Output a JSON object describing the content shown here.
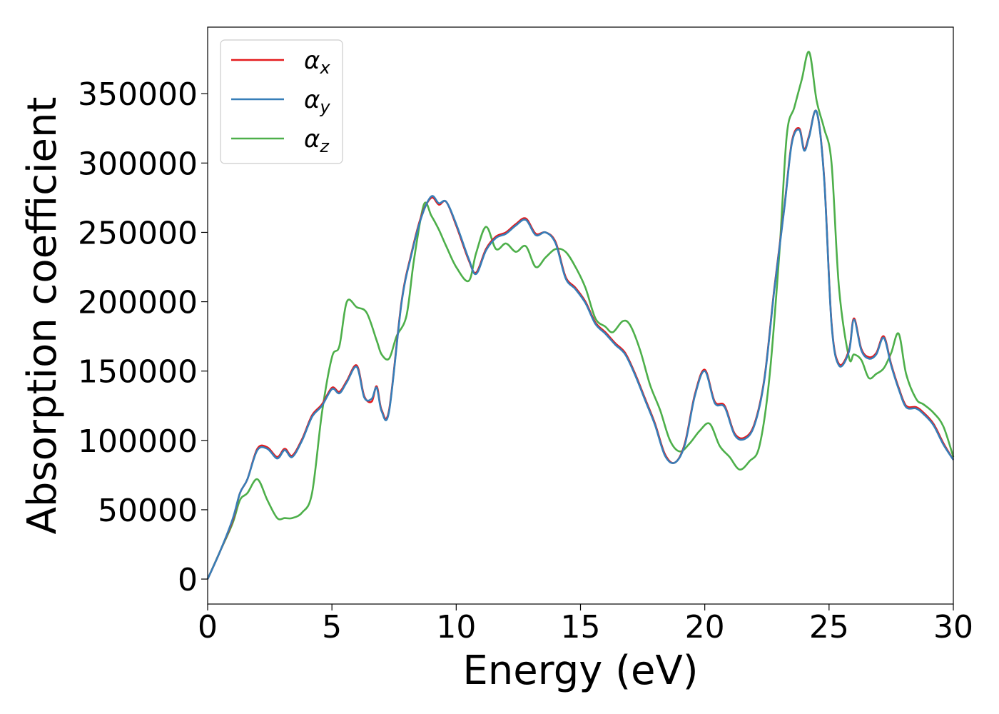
{
  "chart_data": {
    "type": "line",
    "title": "",
    "xlabel": "Energy (eV)",
    "ylabel": "Absorption coefficient",
    "xlim": [
      0,
      30
    ],
    "ylim": [
      -18000,
      398000
    ],
    "xticks": [
      0,
      5,
      10,
      15,
      20,
      25,
      30
    ],
    "yticks": [
      0,
      50000,
      100000,
      150000,
      200000,
      250000,
      300000,
      350000
    ],
    "xtick_labels": [
      "0",
      "5",
      "10",
      "15",
      "20",
      "25",
      "30"
    ],
    "ytick_labels": [
      "0",
      "50000",
      "100000",
      "150000",
      "200000",
      "250000",
      "300000",
      "350000"
    ],
    "grid": false,
    "legend_position": "top-left",
    "series": [
      {
        "name": "α",
        "subscript": "x",
        "color": "#e41a1c",
        "x": [
          0,
          0.5,
          1,
          1.3,
          1.6,
          2,
          2.4,
          2.8,
          3.1,
          3.4,
          3.8,
          4.2,
          4.6,
          5,
          5.3,
          5.6,
          6,
          6.3,
          6.6,
          6.8,
          7,
          7.3,
          7.8,
          8.2,
          8.6,
          9,
          9.3,
          9.6,
          10,
          10.5,
          10.8,
          11.2,
          11.6,
          12,
          12.4,
          12.8,
          13.2,
          13.6,
          14,
          14.4,
          14.8,
          15.2,
          15.6,
          16,
          16.4,
          16.8,
          17.2,
          17.6,
          18,
          18.4,
          18.8,
          19.2,
          19.6,
          20,
          20.4,
          20.8,
          21.2,
          21.6,
          22,
          22.4,
          22.8,
          23.2,
          23.5,
          23.8,
          24,
          24.2,
          24.5,
          24.8,
          25.1,
          25.4,
          25.8,
          26,
          26.3,
          26.6,
          26.9,
          27.2,
          27.5,
          27.8,
          28.1,
          28.5,
          28.8,
          29.2,
          29.6,
          30
        ],
        "y": [
          0,
          20000,
          42000,
          62000,
          72000,
          94000,
          95000,
          88000,
          94000,
          89000,
          101000,
          118000,
          126000,
          138000,
          135000,
          143000,
          154000,
          132000,
          128000,
          139000,
          122000,
          122000,
          200000,
          235000,
          262000,
          275000,
          270000,
          272000,
          255000,
          230000,
          221000,
          238000,
          247000,
          250000,
          256000,
          260000,
          249000,
          250000,
          243000,
          218000,
          210000,
          200000,
          185000,
          178000,
          170000,
          163000,
          148000,
          130000,
          112000,
          90000,
          84000,
          98000,
          133000,
          151000,
          128000,
          125000,
          105000,
          102000,
          112000,
          145000,
          210000,
          268000,
          315000,
          325000,
          310000,
          320000,
          337000,
          290000,
          185000,
          155000,
          165000,
          188000,
          166000,
          160000,
          163000,
          175000,
          155000,
          138000,
          125000,
          124000,
          120000,
          112000,
          98000,
          86000
        ]
      },
      {
        "name": "α",
        "subscript": "y",
        "color": "#377eb8",
        "x": [
          0,
          0.5,
          1,
          1.3,
          1.6,
          2,
          2.4,
          2.8,
          3.1,
          3.4,
          3.8,
          4.2,
          4.6,
          5,
          5.3,
          5.6,
          6,
          6.3,
          6.6,
          6.8,
          7,
          7.3,
          7.8,
          8.2,
          8.6,
          9,
          9.3,
          9.6,
          10,
          10.5,
          10.8,
          11.2,
          11.6,
          12,
          12.4,
          12.8,
          13.2,
          13.6,
          14,
          14.4,
          14.8,
          15.2,
          15.6,
          16,
          16.4,
          16.8,
          17.2,
          17.6,
          18,
          18.4,
          18.8,
          19.2,
          19.6,
          20,
          20.4,
          20.8,
          21.2,
          21.6,
          22,
          22.4,
          22.8,
          23.2,
          23.5,
          23.8,
          24,
          24.2,
          24.5,
          24.8,
          25.1,
          25.4,
          25.8,
          26,
          26.3,
          26.6,
          26.9,
          27.2,
          27.5,
          27.8,
          28.1,
          28.5,
          28.8,
          29.2,
          29.6,
          30
        ],
        "y": [
          0,
          20000,
          43000,
          62000,
          72000,
          93000,
          94000,
          87000,
          93000,
          88000,
          100000,
          117000,
          125000,
          137000,
          134000,
          142000,
          153000,
          131000,
          130000,
          138000,
          121000,
          121000,
          199000,
          234000,
          261000,
          276000,
          271000,
          272000,
          256000,
          231000,
          220000,
          237000,
          246000,
          249000,
          255000,
          259000,
          248000,
          250000,
          242000,
          217000,
          209000,
          199000,
          184000,
          177000,
          169000,
          162000,
          147000,
          129000,
          111000,
          89000,
          84000,
          97000,
          132000,
          150000,
          127000,
          124000,
          104000,
          101000,
          111000,
          144000,
          209000,
          267000,
          314000,
          324000,
          309000,
          319000,
          337000,
          289000,
          184000,
          154000,
          164000,
          187000,
          165000,
          159000,
          162000,
          174000,
          154000,
          137000,
          124000,
          123000,
          119000,
          111000,
          97000,
          86000
        ]
      },
      {
        "name": "α",
        "subscript": "z",
        "color": "#4daf4a",
        "x": [
          0,
          0.5,
          1,
          1.3,
          1.6,
          2,
          2.4,
          2.8,
          3.1,
          3.4,
          3.8,
          4.2,
          4.6,
          5,
          5.3,
          5.6,
          6,
          6.4,
          6.8,
          7,
          7.3,
          7.6,
          8,
          8.3,
          8.7,
          9,
          9.3,
          9.6,
          10,
          10.5,
          10.8,
          11.2,
          11.6,
          12,
          12.4,
          12.8,
          13.2,
          13.6,
          14,
          14.4,
          14.8,
          15.2,
          15.6,
          16,
          16.3,
          16.7,
          17,
          17.4,
          17.8,
          18.2,
          18.6,
          19,
          19.4,
          19.8,
          20.2,
          20.6,
          21,
          21.4,
          21.8,
          22.2,
          22.6,
          23,
          23.3,
          23.6,
          23.9,
          24.2,
          24.5,
          24.8,
          25.1,
          25.4,
          25.8,
          26,
          26.3,
          26.6,
          26.9,
          27.2,
          27.5,
          27.8,
          28.1,
          28.5,
          28.8,
          29.2,
          29.6,
          30
        ],
        "y": [
          0,
          20000,
          40000,
          57000,
          62000,
          72000,
          57000,
          44000,
          44000,
          44000,
          48000,
          62000,
          120000,
          160000,
          168000,
          200000,
          196000,
          192000,
          172000,
          162000,
          159000,
          175000,
          190000,
          230000,
          270000,
          262000,
          252000,
          240000,
          225000,
          215000,
          235000,
          254000,
          238000,
          242000,
          236000,
          240000,
          225000,
          232000,
          238000,
          236000,
          225000,
          210000,
          188000,
          182000,
          178000,
          186000,
          183000,
          165000,
          140000,
          122000,
          100000,
          92000,
          98000,
          107000,
          112000,
          96000,
          88000,
          79000,
          85000,
          96000,
          145000,
          235000,
          320000,
          340000,
          360000,
          380000,
          345000,
          325000,
          300000,
          210000,
          160000,
          162000,
          158000,
          145000,
          148000,
          152000,
          163000,
          177000,
          148000,
          130000,
          126000,
          120000,
          110000,
          88000
        ]
      }
    ]
  }
}
